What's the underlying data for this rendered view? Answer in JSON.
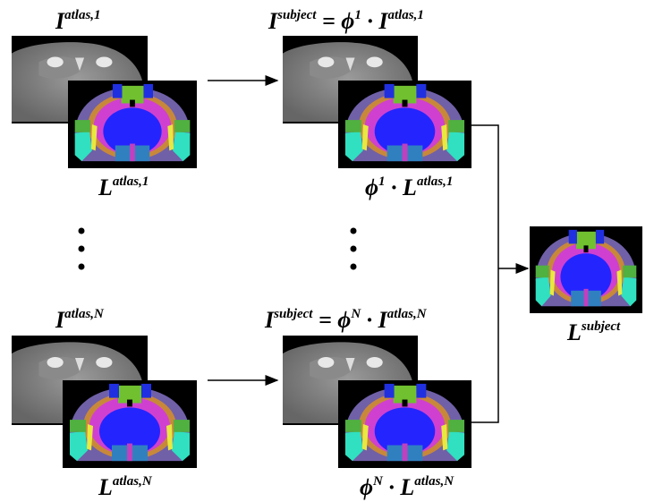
{
  "rows": [
    {
      "atlas_image_label": [
        {
          "base": "I"
        },
        {
          "sup": "atlas,1"
        }
      ],
      "atlas_labels_label": [
        {
          "base": "L"
        },
        {
          "sup": "atlas,1"
        }
      ],
      "warped_image_label": [
        {
          "base": "I"
        },
        {
          "sup": "subject"
        },
        {
          "base": " = ϕ"
        },
        {
          "sup": "1"
        },
        {
          "base": " · I"
        },
        {
          "sup": "atlas,1"
        }
      ],
      "warped_labels_label": [
        {
          "base": "ϕ"
        },
        {
          "sup": "1"
        },
        {
          "base": " · L"
        },
        {
          "sup": "atlas,1"
        }
      ]
    },
    {
      "atlas_image_label": [
        {
          "base": "I"
        },
        {
          "sup": "atlas,N"
        }
      ],
      "atlas_labels_label": [
        {
          "base": "L"
        },
        {
          "sup": "atlas,N"
        }
      ],
      "warped_image_label": [
        {
          "base": "I"
        },
        {
          "sup": "subject"
        },
        {
          "base": " = ϕ"
        },
        {
          "sup": "N"
        },
        {
          "base": " · I"
        },
        {
          "sup": "atlas,N"
        }
      ],
      "warped_labels_label": [
        {
          "base": "ϕ"
        },
        {
          "sup": "N"
        },
        {
          "base": " · L"
        },
        {
          "sup": "atlas,N"
        }
      ]
    }
  ],
  "result_label": [
    {
      "base": "L"
    },
    {
      "sup": "subject"
    }
  ]
}
